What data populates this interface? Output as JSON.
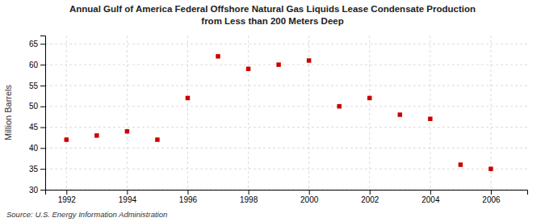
{
  "chart_data": {
    "type": "scatter",
    "title": "Annual Gulf of America Federal Offshore Natural Gas Liquids Lease Condensate Production",
    "subtitle": "from Less than 200 Meters Deep",
    "ylabel": "Million Barrels",
    "annotations": [
      "Source: U.S. Energy Information Administration"
    ],
    "x": [
      1992,
      1993,
      1994,
      1995,
      1996,
      1997,
      1998,
      1999,
      2000,
      2001,
      2002,
      2003,
      2004,
      2005,
      2006
    ],
    "values": [
      42.0,
      43.0,
      44.0,
      42.0,
      52.0,
      62.0,
      59.0,
      60.0,
      61.0,
      50.0,
      52.0,
      48.0,
      47.0,
      36.0,
      35.0
    ],
    "color": "#cc0000",
    "marker": "square",
    "xlim": [
      1991.3,
      2007.2
    ],
    "xticks": [
      1992,
      1994,
      1996,
      1998,
      2000,
      2002,
      2004,
      2006
    ],
    "ylim": [
      30,
      67
    ],
    "yticks": [
      30,
      35,
      40,
      45,
      50,
      55,
      60,
      65
    ],
    "grid": true
  }
}
